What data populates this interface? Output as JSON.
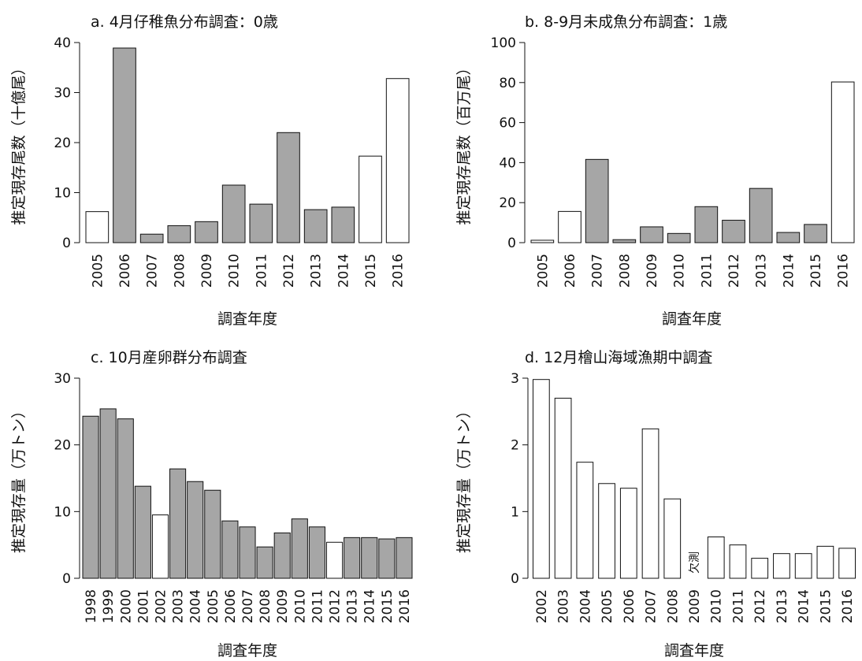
{
  "chart_data": [
    {
      "type": "bar",
      "title": "a. 4月仔稚魚分布調査：0歳",
      "xlabel": "調査年度",
      "ylabel": "推定現存尾数（十億尾）",
      "ylim": [
        0,
        40
      ],
      "yticks": [
        0,
        10,
        20,
        30,
        40
      ],
      "categories": [
        "2005",
        "2006",
        "2007",
        "2008",
        "2009",
        "2010",
        "2011",
        "2012",
        "2013",
        "2014",
        "2015",
        "2016"
      ],
      "values": [
        6.2,
        38.9,
        1.7,
        3.4,
        4.2,
        11.5,
        7.7,
        22.0,
        6.6,
        7.1,
        17.3,
        32.8
      ],
      "fills": [
        "#ffffff",
        "#a6a6a6",
        "#a6a6a6",
        "#a6a6a6",
        "#a6a6a6",
        "#a6a6a6",
        "#a6a6a6",
        "#a6a6a6",
        "#a6a6a6",
        "#a6a6a6",
        "#ffffff",
        "#ffffff"
      ],
      "grid": false
    },
    {
      "type": "bar",
      "title": "b. 8-9月未成魚分布調査：1歳",
      "xlabel": "調査年度",
      "ylabel": "推定現存尾数（百万尾）",
      "ylim": [
        0,
        100
      ],
      "yticks": [
        0,
        20,
        40,
        60,
        80,
        100
      ],
      "categories": [
        "2005",
        "2006",
        "2007",
        "2008",
        "2009",
        "2010",
        "2011",
        "2012",
        "2013",
        "2014",
        "2015",
        "2016"
      ],
      "values": [
        1.2,
        15.6,
        41.6,
        1.5,
        7.9,
        4.6,
        18.0,
        11.2,
        27.1,
        5.1,
        9.1,
        80.3
      ],
      "fills": [
        "#ffffff",
        "#ffffff",
        "#a6a6a6",
        "#a6a6a6",
        "#a6a6a6",
        "#a6a6a6",
        "#a6a6a6",
        "#a6a6a6",
        "#a6a6a6",
        "#a6a6a6",
        "#a6a6a6",
        "#ffffff"
      ],
      "grid": false
    },
    {
      "type": "bar",
      "title": "c. 10月産卵群分布調査",
      "xlabel": "調査年度",
      "ylabel": "推定現存量（万トン）",
      "ylim": [
        0,
        30
      ],
      "yticks": [
        0,
        10,
        20,
        30
      ],
      "categories": [
        "1998",
        "1999",
        "2000",
        "2001",
        "2002",
        "2003",
        "2004",
        "2005",
        "2006",
        "2007",
        "2008",
        "2009",
        "2010",
        "2011",
        "2012",
        "2013",
        "2014",
        "2015",
        "2016"
      ],
      "values": [
        24.3,
        25.4,
        23.9,
        13.8,
        9.5,
        16.4,
        14.5,
        13.2,
        8.6,
        7.7,
        4.7,
        6.8,
        8.9,
        7.7,
        5.4,
        6.1,
        6.1,
        5.9,
        6.1
      ],
      "fills": [
        "#a6a6a6",
        "#a6a6a6",
        "#a6a6a6",
        "#a6a6a6",
        "#ffffff",
        "#a6a6a6",
        "#a6a6a6",
        "#a6a6a6",
        "#a6a6a6",
        "#a6a6a6",
        "#a6a6a6",
        "#a6a6a6",
        "#a6a6a6",
        "#a6a6a6",
        "#ffffff",
        "#a6a6a6",
        "#a6a6a6",
        "#a6a6a6",
        "#a6a6a6"
      ],
      "grid": false
    },
    {
      "type": "bar",
      "title": "d. 12月檜山海域漁期中調査",
      "xlabel": "調査年度",
      "ylabel": "推定現存量（万トン）",
      "ylim": [
        0,
        3
      ],
      "yticks": [
        0,
        1,
        2,
        3
      ],
      "categories": [
        "2002",
        "2003",
        "2004",
        "2005",
        "2006",
        "2007",
        "2008",
        "2009",
        "2010",
        "2011",
        "2012",
        "2013",
        "2014",
        "2015",
        "2016"
      ],
      "values": [
        2.98,
        2.7,
        1.74,
        1.42,
        1.35,
        2.24,
        1.19,
        null,
        0.62,
        0.5,
        0.3,
        0.37,
        0.37,
        0.48,
        0.45
      ],
      "fills": [
        "#ffffff",
        "#ffffff",
        "#ffffff",
        "#ffffff",
        "#ffffff",
        "#ffffff",
        "#ffffff",
        "#ffffff",
        "#ffffff",
        "#ffffff",
        "#ffffff",
        "#ffffff",
        "#ffffff",
        "#ffffff",
        "#ffffff"
      ],
      "annotations": [
        {
          "category": "2009",
          "text": "欠測"
        }
      ],
      "grid": false
    }
  ]
}
